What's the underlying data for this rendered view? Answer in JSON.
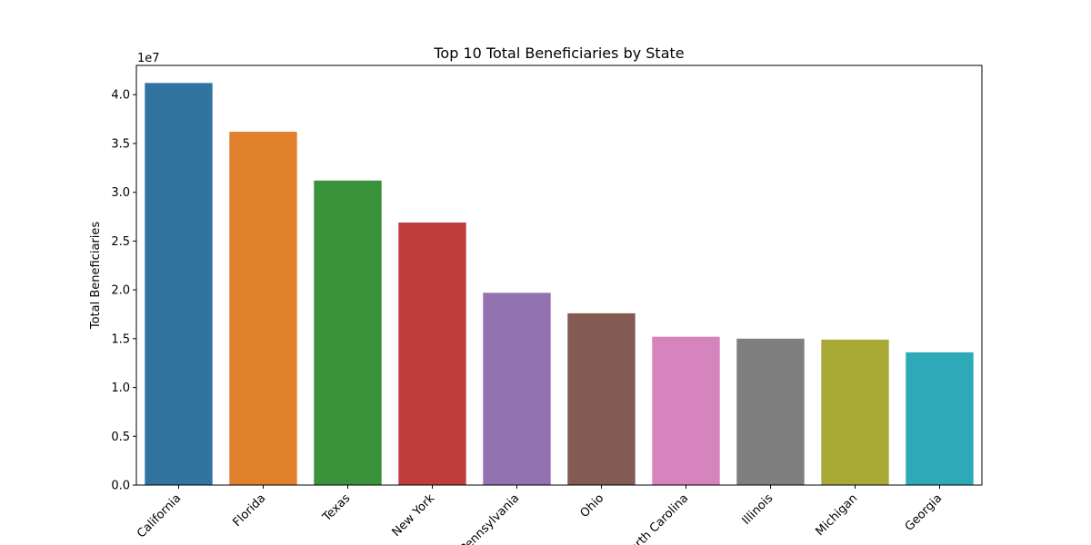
{
  "chart_data": {
    "type": "bar",
    "title": "Top 10 Total Beneficiaries by State",
    "xlabel": "",
    "ylabel": "Total Beneficiaries",
    "offset_text": "1e7",
    "categories": [
      "California",
      "Florida",
      "Texas",
      "New York",
      "Pennsylvania",
      "Ohio",
      "North Carolina",
      "Illinois",
      "Michigan",
      "Georgia"
    ],
    "values": [
      41200000,
      36200000,
      31200000,
      26900000,
      19700000,
      17600000,
      15200000,
      15000000,
      14900000,
      13600000
    ],
    "ylim": [
      0,
      43000000
    ],
    "yticks": [
      0,
      5000000,
      10000000,
      15000000,
      20000000,
      25000000,
      30000000,
      35000000,
      40000000
    ],
    "ytick_labels": [
      "0.0",
      "0.5",
      "1.0",
      "1.5",
      "2.0",
      "2.5",
      "3.0",
      "3.5",
      "4.0"
    ],
    "colors": [
      "#3274a1",
      "#e1812c",
      "#3a923a",
      "#c03d3e",
      "#9372b2",
      "#845b53",
      "#d684bd",
      "#7f7f7f",
      "#a9aa35",
      "#2ea9b8"
    ],
    "grid": false,
    "legend": "none"
  }
}
